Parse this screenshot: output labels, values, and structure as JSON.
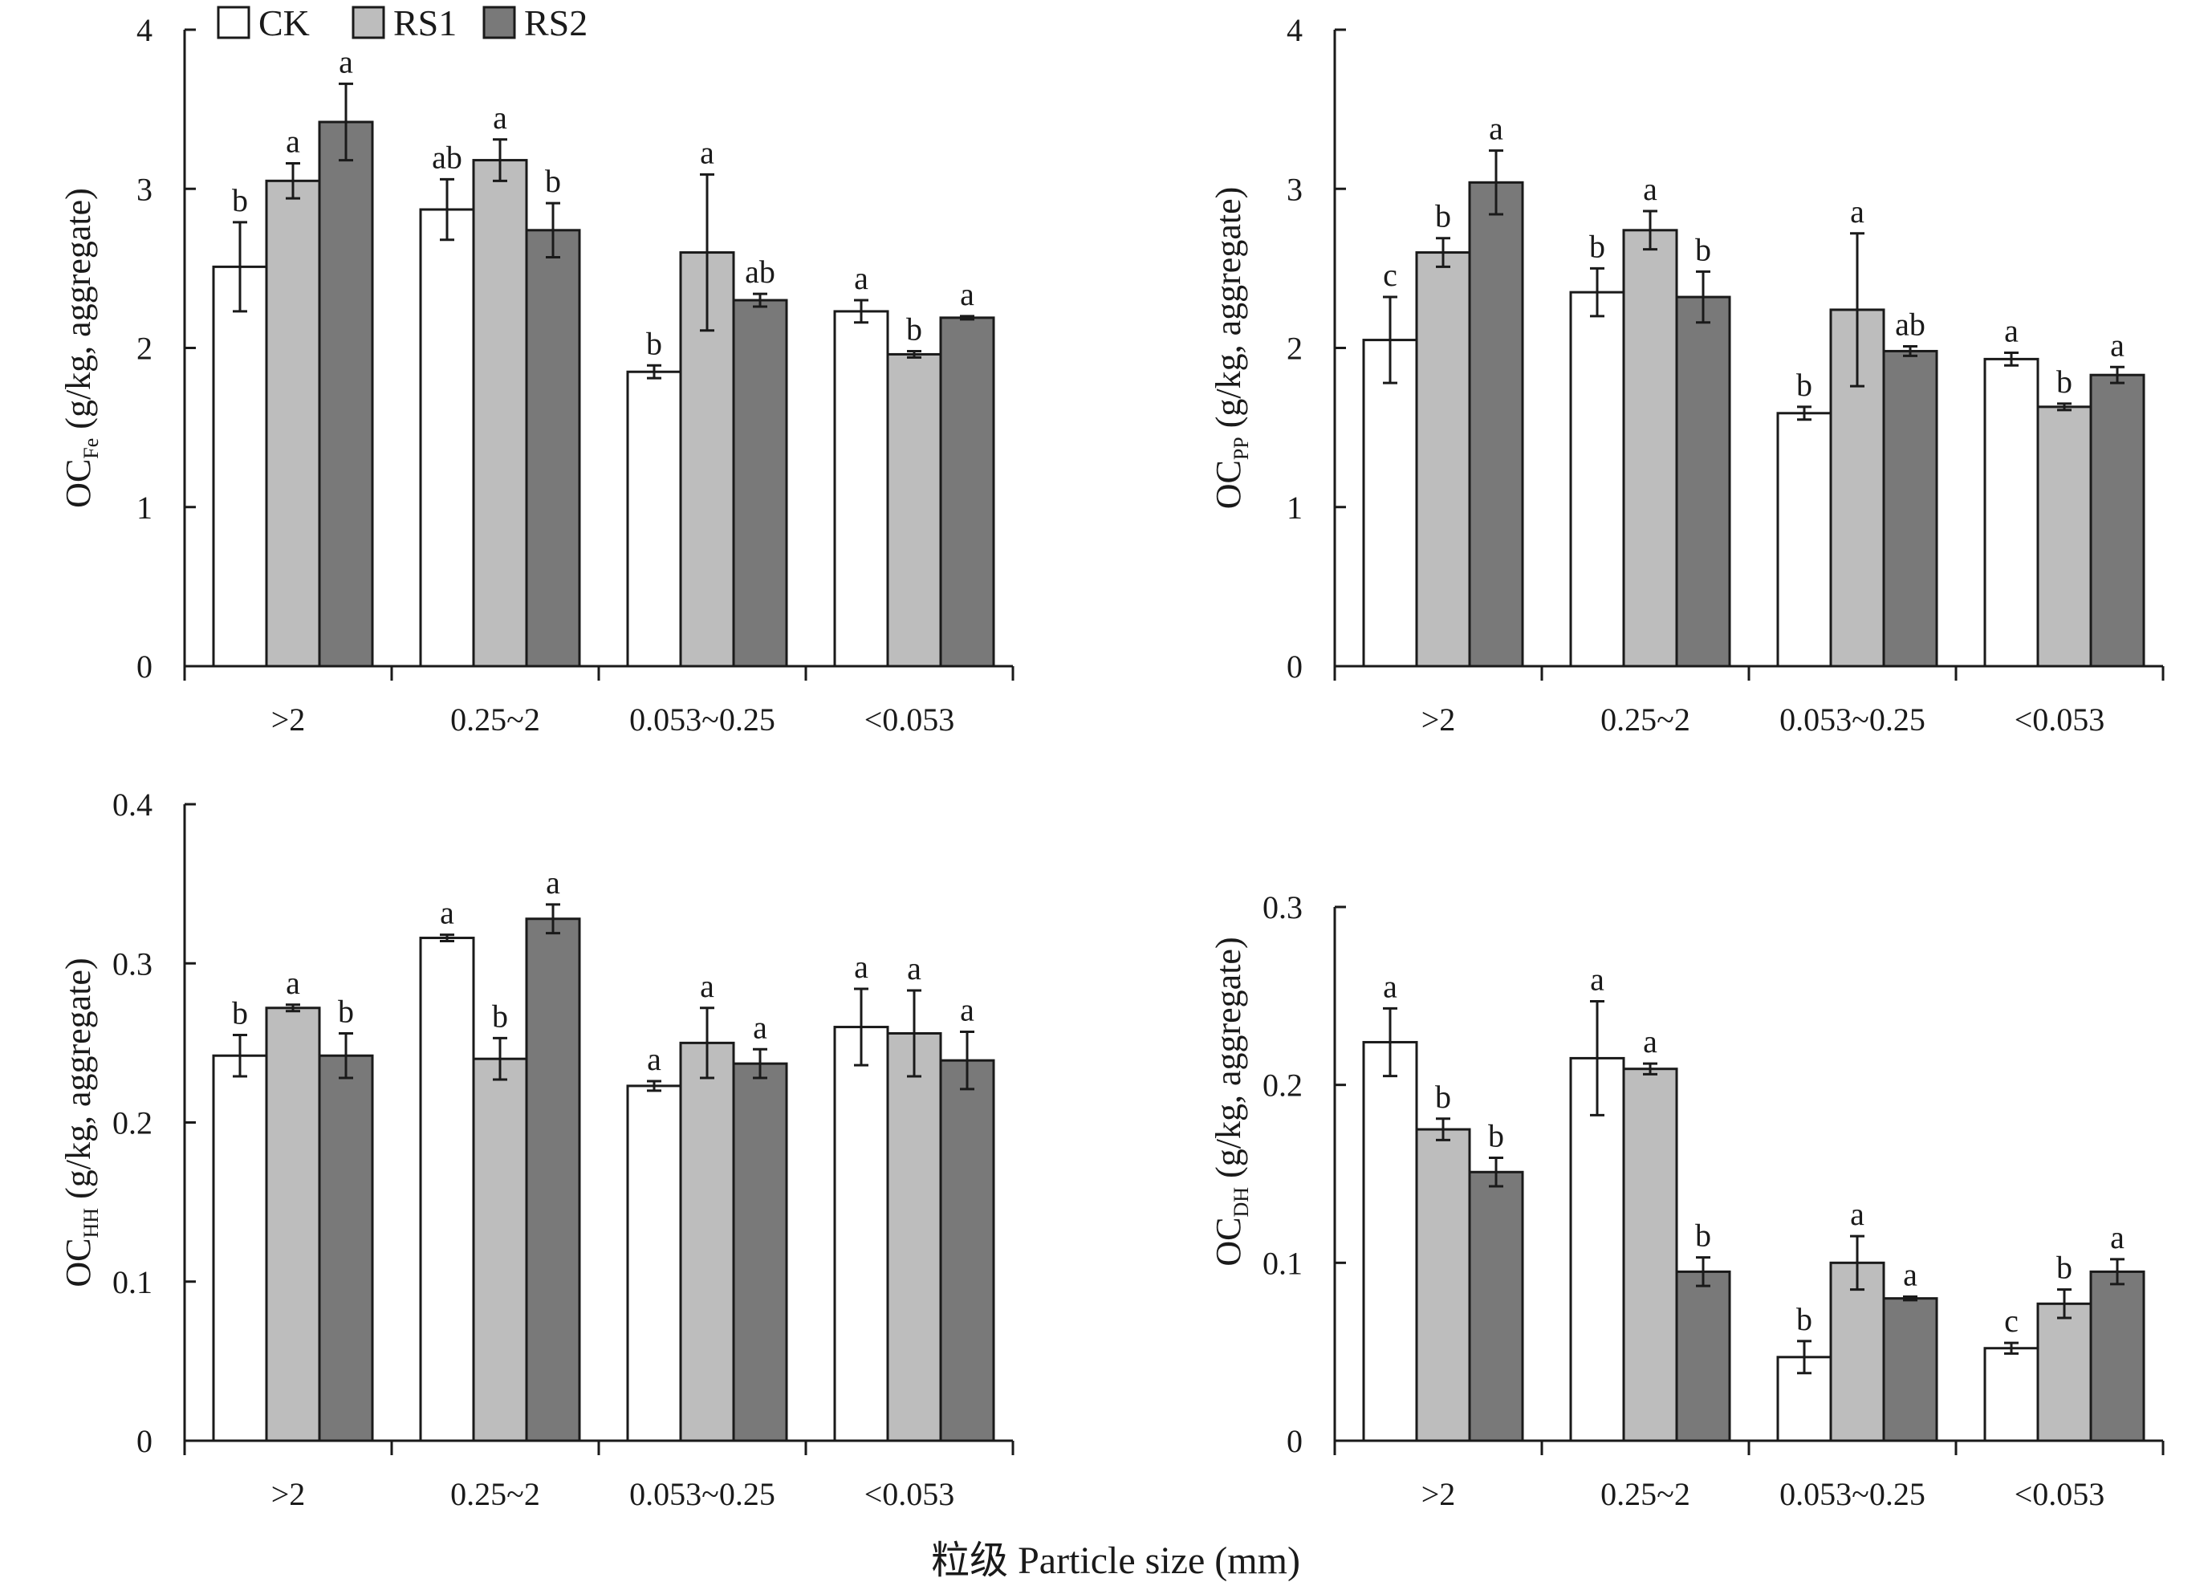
{
  "chart_data": [
    {
      "type": "bar",
      "ylabel": {
        "main": "OC",
        "sub": "Fe",
        "rest": " (g/kg, aggregate)"
      },
      "ylim": [
        0,
        4
      ],
      "yticks": [
        "0",
        "1",
        "2",
        "3",
        "4"
      ],
      "categories": [
        ">2",
        "0.25~2",
        "0.053~0.25",
        "<0.053"
      ],
      "series": [
        {
          "name": "CK",
          "color": "#ffffff",
          "values": [
            2.51,
            2.87,
            1.85,
            2.23
          ],
          "errors": [
            0.28,
            0.19,
            0.04,
            0.07
          ],
          "letters": [
            "b",
            "ab",
            "b",
            "a"
          ]
        },
        {
          "name": "RS1",
          "color": "#bdbdbd",
          "values": [
            3.05,
            3.18,
            2.6,
            1.96
          ],
          "errors": [
            0.11,
            0.13,
            0.49,
            0.02
          ],
          "letters": [
            "a",
            "a",
            "a",
            "b"
          ]
        },
        {
          "name": "RS2",
          "color": "#797979",
          "values": [
            3.42,
            2.74,
            2.3,
            2.19
          ],
          "errors": [
            0.24,
            0.17,
            0.04,
            0.01
          ],
          "letters": [
            "a",
            "b",
            "ab",
            "a"
          ]
        }
      ]
    },
    {
      "type": "bar",
      "ylabel": {
        "main": "OC",
        "sub": "PP",
        "rest": " (g/kg, aggregate)"
      },
      "ylim": [
        0,
        4
      ],
      "yticks": [
        "0",
        "1",
        "2",
        "3",
        "4"
      ],
      "categories": [
        ">2",
        "0.25~2",
        "0.053~0.25",
        "<0.053"
      ],
      "series": [
        {
          "name": "CK",
          "color": "#ffffff",
          "values": [
            2.05,
            2.35,
            1.59,
            1.93
          ],
          "errors": [
            0.27,
            0.15,
            0.04,
            0.04
          ],
          "letters": [
            "c",
            "b",
            "b",
            "a"
          ]
        },
        {
          "name": "RS1",
          "color": "#bdbdbd",
          "values": [
            2.6,
            2.74,
            2.24,
            1.63
          ],
          "errors": [
            0.09,
            0.12,
            0.48,
            0.02
          ],
          "letters": [
            "b",
            "a",
            "a",
            "b"
          ]
        },
        {
          "name": "RS2",
          "color": "#797979",
          "values": [
            3.04,
            2.32,
            1.98,
            1.83
          ],
          "errors": [
            0.2,
            0.16,
            0.03,
            0.05
          ],
          "letters": [
            "a",
            "b",
            "ab",
            "a"
          ]
        }
      ]
    },
    {
      "type": "bar",
      "ylabel": {
        "main": "OC",
        "sub": "HH",
        "rest": " (g/kg, aggregate)"
      },
      "ylim": [
        0,
        0.4
      ],
      "yticks": [
        "0",
        "0.1",
        "0.2",
        "0.3",
        "0.4"
      ],
      "categories": [
        ">2",
        "0.25~2",
        "0.053~0.25",
        "<0.053"
      ],
      "series": [
        {
          "name": "CK",
          "color": "#ffffff",
          "values": [
            0.242,
            0.316,
            0.223,
            0.26
          ],
          "errors": [
            0.013,
            0.002,
            0.003,
            0.024
          ],
          "letters": [
            "b",
            "a",
            "a",
            "a"
          ]
        },
        {
          "name": "RS1",
          "color": "#bdbdbd",
          "values": [
            0.272,
            0.24,
            0.25,
            0.256
          ],
          "errors": [
            0.002,
            0.013,
            0.022,
            0.027
          ],
          "letters": [
            "a",
            "b",
            "a",
            "a"
          ]
        },
        {
          "name": "RS2",
          "color": "#797979",
          "values": [
            0.242,
            0.328,
            0.237,
            0.239
          ],
          "errors": [
            0.014,
            0.009,
            0.009,
            0.018
          ],
          "letters": [
            "b",
            "a",
            "a",
            "a"
          ]
        }
      ]
    },
    {
      "type": "bar",
      "ylabel": {
        "main": "OC",
        "sub": "DH",
        "rest": " (g/kg, aggregate)"
      },
      "ylim": [
        0,
        0.3
      ],
      "yticks": [
        "0",
        "0.1",
        "0.2",
        "0.3"
      ],
      "categories": [
        ">2",
        "0.25~2",
        "0.053~0.25",
        "<0.053"
      ],
      "series": [
        {
          "name": "CK",
          "color": "#ffffff",
          "values": [
            0.224,
            0.215,
            0.047,
            0.052
          ],
          "errors": [
            0.019,
            0.032,
            0.009,
            0.003
          ],
          "letters": [
            "a",
            "a",
            "b",
            "c"
          ]
        },
        {
          "name": "RS1",
          "color": "#bdbdbd",
          "values": [
            0.175,
            0.209,
            0.1,
            0.077
          ],
          "errors": [
            0.006,
            0.003,
            0.015,
            0.008
          ],
          "letters": [
            "b",
            "a",
            "a",
            "b"
          ]
        },
        {
          "name": "RS2",
          "color": "#797979",
          "values": [
            0.151,
            0.095,
            0.08,
            0.095
          ],
          "errors": [
            0.008,
            0.008,
            0.001,
            0.007
          ],
          "letters": [
            "b",
            "b",
            "a",
            "a"
          ]
        }
      ]
    }
  ],
  "legend": {
    "placement": "top-left",
    "items": [
      {
        "label": "CK",
        "color": "#ffffff"
      },
      {
        "label": "RS1",
        "color": "#bdbdbd"
      },
      {
        "label": "RS2",
        "color": "#797979"
      }
    ]
  },
  "xlabel": "粒级 Particle size (mm)"
}
